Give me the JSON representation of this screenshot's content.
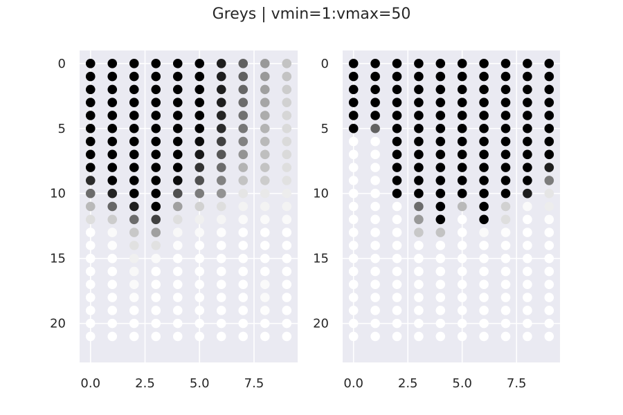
{
  "title": "Greys | vmin=1:vmax=50",
  "colormap": "Greys",
  "vmin": 1,
  "vmax": 50,
  "axes_background": "#eaeaf2",
  "grid_color": "#ffffff",
  "chart_data": [
    {
      "type": "scatter",
      "xlim": [
        -0.5,
        9.5
      ],
      "ylim": [
        23,
        -1
      ],
      "y_inverted": true,
      "grid": true,
      "x_ticks": [
        0.0,
        2.5,
        5.0,
        7.5
      ],
      "x_tick_labels": [
        "0.0",
        "2.5",
        "5.0",
        "7.5"
      ],
      "y_ticks": [
        0,
        5,
        10,
        15,
        20
      ],
      "y_tick_labels": [
        "0",
        "5",
        "10",
        "15",
        "20"
      ],
      "x": [
        0,
        1,
        2,
        3,
        4,
        5,
        6,
        7,
        8,
        9
      ],
      "y": [
        0,
        1,
        2,
        3,
        4,
        5,
        6,
        7,
        8,
        9,
        10,
        11,
        12,
        13,
        14,
        15,
        16,
        17,
        18,
        19,
        20,
        21
      ],
      "values": [
        [
          50,
          50,
          50,
          50,
          50,
          50,
          45,
          35,
          25,
          18
        ],
        [
          50,
          50,
          50,
          50,
          50,
          50,
          45,
          35,
          25,
          18
        ],
        [
          50,
          50,
          50,
          50,
          50,
          50,
          45,
          34,
          24,
          16
        ],
        [
          50,
          50,
          50,
          50,
          50,
          50,
          45,
          33,
          23,
          15
        ],
        [
          50,
          50,
          50,
          50,
          50,
          50,
          44,
          32,
          22,
          14
        ],
        [
          50,
          50,
          50,
          50,
          50,
          50,
          43,
          31,
          21,
          13
        ],
        [
          50,
          50,
          50,
          50,
          50,
          48,
          40,
          29,
          20,
          13
        ],
        [
          50,
          50,
          50,
          50,
          50,
          46,
          37,
          26,
          19,
          13
        ],
        [
          50,
          50,
          50,
          50,
          50,
          42,
          33,
          21,
          18,
          12
        ],
        [
          43,
          50,
          50,
          50,
          48,
          38,
          29,
          18,
          16,
          11
        ],
        [
          33,
          44,
          50,
          50,
          38,
          30,
          26,
          10,
          9,
          8
        ],
        [
          20,
          34,
          45,
          50,
          24,
          15,
          12,
          6,
          6,
          6
        ],
        [
          12,
          16,
          33,
          40,
          12,
          7,
          5,
          3,
          3,
          3
        ],
        [
          1,
          3,
          17,
          24,
          4,
          3,
          2,
          1,
          1,
          1
        ],
        [
          1,
          2,
          11,
          11,
          2,
          1,
          1,
          1,
          1,
          1
        ],
        [
          1,
          1,
          7,
          3,
          1,
          1,
          1,
          1,
          1,
          1
        ],
        [
          1,
          1,
          4,
          1,
          1,
          1,
          1,
          1,
          1,
          1
        ],
        [
          1,
          1,
          3,
          1,
          1,
          1,
          1,
          1,
          3,
          1
        ],
        [
          1,
          1,
          2,
          1,
          1,
          1,
          1,
          1,
          3,
          1
        ],
        [
          1,
          1,
          1,
          1,
          1,
          1,
          1,
          1,
          2,
          1
        ],
        [
          1,
          1,
          1,
          1,
          1,
          1,
          1,
          1,
          1,
          1
        ],
        [
          1,
          1,
          1,
          1,
          1,
          1,
          1,
          1,
          1,
          1
        ]
      ]
    },
    {
      "type": "scatter",
      "xlim": [
        -0.5,
        9.5
      ],
      "ylim": [
        23,
        -1
      ],
      "y_inverted": true,
      "grid": true,
      "x_ticks": [
        0.0,
        2.5,
        5.0,
        7.5
      ],
      "x_tick_labels": [
        "0.0",
        "2.5",
        "5.0",
        "7.5"
      ],
      "y_ticks": [
        0,
        5,
        10,
        15,
        20
      ],
      "y_tick_labels": [
        "0",
        "5",
        "10",
        "15",
        "20"
      ],
      "x": [
        0,
        1,
        2,
        3,
        4,
        5,
        6,
        7,
        8,
        9
      ],
      "y": [
        0,
        1,
        2,
        3,
        4,
        5,
        6,
        7,
        8,
        9,
        10,
        11,
        12,
        13,
        14,
        15,
        16,
        17,
        18,
        19,
        20,
        21
      ],
      "values": [
        [
          50,
          50,
          50,
          50,
          50,
          50,
          50,
          50,
          50,
          50
        ],
        [
          50,
          50,
          50,
          50,
          50,
          50,
          50,
          50,
          50,
          50
        ],
        [
          50,
          50,
          50,
          50,
          50,
          50,
          50,
          50,
          50,
          50
        ],
        [
          50,
          50,
          50,
          50,
          50,
          50,
          50,
          50,
          50,
          50
        ],
        [
          50,
          50,
          50,
          50,
          50,
          50,
          50,
          50,
          50,
          50
        ],
        [
          50,
          35,
          50,
          50,
          50,
          50,
          50,
          50,
          50,
          50
        ],
        [
          1,
          1,
          50,
          50,
          50,
          50,
          50,
          50,
          50,
          50
        ],
        [
          1,
          1,
          50,
          50,
          50,
          50,
          50,
          50,
          50,
          50
        ],
        [
          1,
          1,
          50,
          50,
          50,
          50,
          50,
          50,
          50,
          45
        ],
        [
          1,
          1,
          50,
          50,
          50,
          50,
          50,
          50,
          50,
          30
        ],
        [
          1,
          1,
          50,
          50,
          50,
          50,
          50,
          50,
          45,
          10
        ],
        [
          1,
          1,
          1,
          33,
          50,
          20,
          50,
          15,
          3,
          8
        ],
        [
          1,
          1,
          1,
          25,
          50,
          1,
          50,
          12,
          1,
          2
        ],
        [
          1,
          1,
          1,
          17,
          18,
          1,
          3,
          2,
          1,
          1
        ],
        [
          1,
          1,
          1,
          1,
          1,
          1,
          1,
          1,
          1,
          1
        ],
        [
          1,
          1,
          1,
          1,
          1,
          1,
          1,
          1,
          1,
          1
        ],
        [
          1,
          1,
          1,
          1,
          1,
          1,
          1,
          1,
          1,
          1
        ],
        [
          1,
          1,
          1,
          1,
          1,
          1,
          1,
          1,
          1,
          1
        ],
        [
          1,
          1,
          1,
          1,
          1,
          1,
          1,
          1,
          1,
          1
        ],
        [
          1,
          1,
          1,
          1,
          1,
          1,
          1,
          1,
          1,
          1
        ],
        [
          1,
          1,
          1,
          1,
          1,
          1,
          1,
          1,
          1,
          1
        ],
        [
          1,
          1,
          1,
          1,
          1,
          1,
          1,
          1,
          1,
          1
        ]
      ]
    }
  ]
}
